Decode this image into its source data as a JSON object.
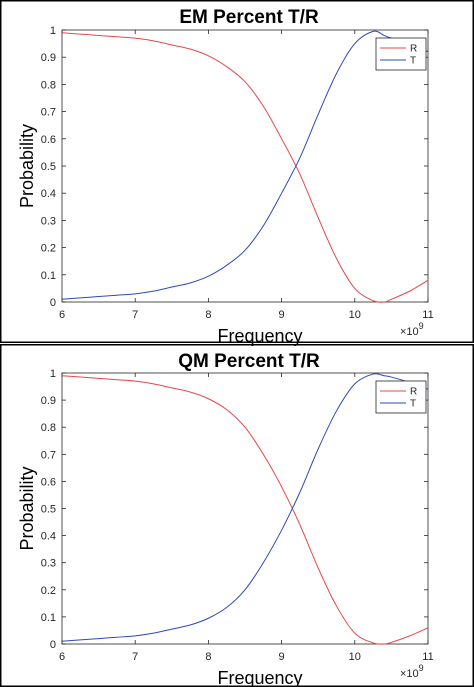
{
  "chart_data": [
    {
      "type": "line",
      "title": "EM Percent T/R",
      "xlabel": "Frequency",
      "ylabel": "Probability",
      "x_multiplier": "×10",
      "x_multiplier_exp": "9",
      "xlim": [
        6,
        11
      ],
      "ylim": [
        0,
        1
      ],
      "xticks": [
        "6",
        "7",
        "8",
        "9",
        "10",
        "11"
      ],
      "yticks": [
        "0",
        "0.1",
        "0.2",
        "0.3",
        "0.4",
        "0.5",
        "0.6",
        "0.7",
        "0.8",
        "0.9",
        "1"
      ],
      "x_scale": 1000000000.0,
      "grid": false,
      "legend_position": "top-right",
      "x": [
        6,
        6.25,
        6.5,
        6.75,
        7,
        7.25,
        7.5,
        7.75,
        8,
        8.25,
        8.5,
        8.75,
        9,
        9.25,
        9.5,
        9.75,
        10,
        10.25,
        10.4,
        10.5,
        10.75,
        11
      ],
      "series": [
        {
          "name": "R",
          "color": "#e8474a",
          "values": [
            0.99,
            0.985,
            0.98,
            0.975,
            0.97,
            0.96,
            0.945,
            0.93,
            0.905,
            0.865,
            0.81,
            0.72,
            0.6,
            0.47,
            0.31,
            0.16,
            0.05,
            0.005,
            0.0,
            0.01,
            0.04,
            0.08
          ]
        },
        {
          "name": "T",
          "color": "#2f49b8",
          "values": [
            0.01,
            0.015,
            0.02,
            0.025,
            0.03,
            0.04,
            0.055,
            0.07,
            0.095,
            0.135,
            0.19,
            0.28,
            0.4,
            0.53,
            0.69,
            0.84,
            0.95,
            0.995,
            0.98,
            0.97,
            0.95,
            0.92
          ]
        }
      ]
    },
    {
      "type": "line",
      "title": "QM Percent T/R",
      "xlabel": "Frequency",
      "ylabel": "Probability",
      "x_multiplier": "×10",
      "x_multiplier_exp": "9",
      "xlim": [
        6,
        11
      ],
      "ylim": [
        0,
        1
      ],
      "xticks": [
        "6",
        "7",
        "8",
        "9",
        "10",
        "11"
      ],
      "yticks": [
        "0",
        "0.1",
        "0.2",
        "0.3",
        "0.4",
        "0.5",
        "0.6",
        "0.7",
        "0.8",
        "0.9",
        "1"
      ],
      "x_scale": 1000000000.0,
      "grid": false,
      "legend_position": "top-right",
      "x": [
        6,
        6.25,
        6.5,
        6.75,
        7,
        7.25,
        7.5,
        7.75,
        8,
        8.25,
        8.5,
        8.75,
        9,
        9.25,
        9.5,
        9.75,
        10,
        10.25,
        10.4,
        10.5,
        10.75,
        11
      ],
      "series": [
        {
          "name": "R",
          "color": "#e8474a",
          "values": [
            0.99,
            0.985,
            0.98,
            0.975,
            0.97,
            0.96,
            0.945,
            0.93,
            0.905,
            0.865,
            0.8,
            0.7,
            0.58,
            0.44,
            0.28,
            0.14,
            0.04,
            0.004,
            0.0,
            0.006,
            0.03,
            0.06
          ]
        },
        {
          "name": "T",
          "color": "#2f49b8",
          "values": [
            0.01,
            0.015,
            0.02,
            0.025,
            0.03,
            0.04,
            0.055,
            0.07,
            0.095,
            0.135,
            0.2,
            0.3,
            0.42,
            0.56,
            0.72,
            0.86,
            0.96,
            0.996,
            0.99,
            0.985,
            0.965,
            0.94
          ]
        }
      ]
    }
  ]
}
